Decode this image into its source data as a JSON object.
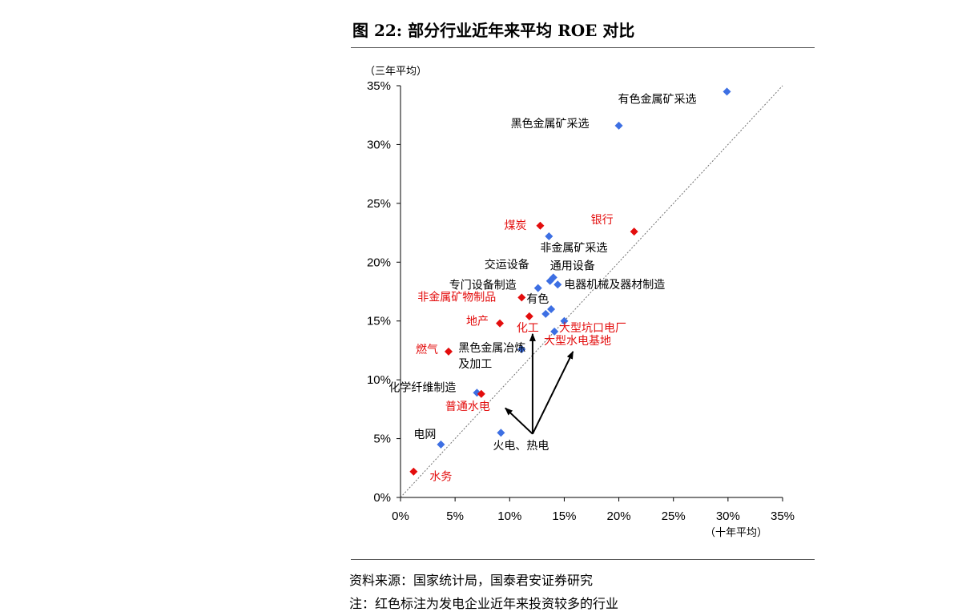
{
  "title": "图 22:  部分行业近年来平均 ROE 对比",
  "source": "资料来源：国家统计局，国泰君安证券研究",
  "note": "注：红色标注为发电企业近年来投资较多的行业",
  "colors": {
    "blue": "#3d6fe3",
    "red": "#e30d0d",
    "arrow": "#000000",
    "diagonal": "#707070"
  },
  "chart_data": {
    "type": "scatter",
    "title": "",
    "xlabel": "（十年平均）",
    "ylabel": "（三年平均）",
    "xlim": [
      0,
      35
    ],
    "ylim": [
      0,
      35
    ],
    "x_ticks": [
      "0%",
      "5%",
      "10%",
      "15%",
      "20%",
      "25%",
      "30%",
      "35%"
    ],
    "y_ticks": [
      "0%",
      "5%",
      "10%",
      "15%",
      "20%",
      "25%",
      "30%",
      "35%"
    ],
    "reference_line": "y = x",
    "grid": false,
    "points": [
      {
        "x": 29.9,
        "y": 34.5,
        "color": "blue",
        "label": "有色金属矿采选"
      },
      {
        "x": 20.0,
        "y": 31.6,
        "color": "blue",
        "label": "黑色金属矿采选"
      },
      {
        "x": 13.6,
        "y": 22.2,
        "color": "blue",
        "label": "非金属矿采选"
      },
      {
        "x": 12.6,
        "y": 17.8,
        "color": "blue",
        "label": "专门设备制造"
      },
      {
        "x": 13.7,
        "y": 18.4,
        "color": "blue",
        "label": "交运设备"
      },
      {
        "x": 14.0,
        "y": 18.7,
        "color": "blue",
        "label": "通用设备"
      },
      {
        "x": 14.4,
        "y": 18.1,
        "color": "blue",
        "label": "电器机械及器材制造"
      },
      {
        "x": 13.8,
        "y": 16.0,
        "color": "blue",
        "label": ""
      },
      {
        "x": 13.3,
        "y": 15.6,
        "color": "blue",
        "label": "有色"
      },
      {
        "x": 15.0,
        "y": 15.0,
        "color": "blue",
        "label": ""
      },
      {
        "x": 14.1,
        "y": 14.1,
        "color": "blue",
        "label": ""
      },
      {
        "x": 11.1,
        "y": 12.6,
        "color": "blue",
        "label": "黑色金属冶炼及加工"
      },
      {
        "x": 7.0,
        "y": 8.9,
        "color": "blue",
        "label": "化学纤维制造"
      },
      {
        "x": 9.2,
        "y": 5.5,
        "color": "blue",
        "label": "火电、热电"
      },
      {
        "x": 3.7,
        "y": 4.5,
        "color": "blue",
        "label": "电网"
      },
      {
        "x": 12.8,
        "y": 23.1,
        "color": "red",
        "label": "煤炭"
      },
      {
        "x": 21.4,
        "y": 22.6,
        "color": "red",
        "label": "银行"
      },
      {
        "x": 11.1,
        "y": 17.0,
        "color": "red",
        "label": "非金属矿物制品"
      },
      {
        "x": 9.1,
        "y": 14.8,
        "color": "red",
        "label": "地产"
      },
      {
        "x": 11.8,
        "y": 15.4,
        "color": "red",
        "label": "化工"
      },
      {
        "x": 4.4,
        "y": 12.4,
        "color": "red",
        "label": "燃气"
      },
      {
        "x": 7.4,
        "y": 8.8,
        "color": "red",
        "label": "普通水电"
      },
      {
        "x": 1.2,
        "y": 2.2,
        "color": "red",
        "label": "水务"
      }
    ],
    "annotations": [
      {
        "text": "大型坑口电厂",
        "color": "red"
      },
      {
        "text": "大型水电基地",
        "color": "red"
      }
    ],
    "arrows": [
      {
        "from": [
          12.1,
          5.4
        ],
        "to": [
          9.6,
          7.6
        ]
      },
      {
        "from": [
          12.1,
          5.4
        ],
        "to": [
          12.1,
          13.9
        ]
      },
      {
        "from": [
          12.1,
          5.4
        ],
        "to": [
          15.8,
          12.4
        ]
      }
    ]
  }
}
